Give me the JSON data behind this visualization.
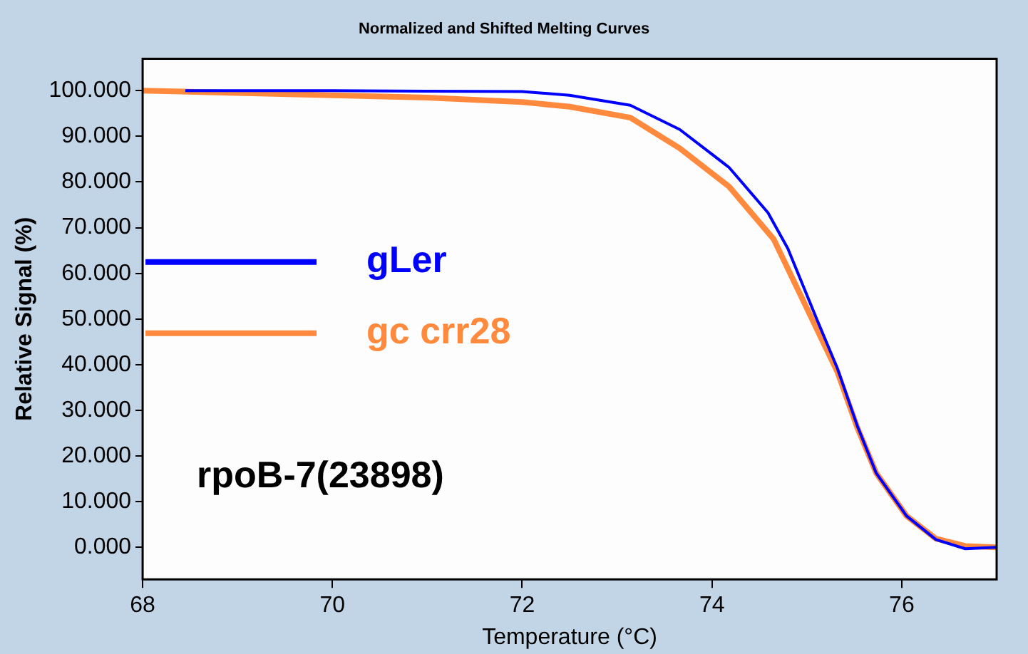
{
  "chart_data": {
    "type": "line",
    "title": "Normalized and Shifted Melting Curves",
    "xlabel": "Temperature (°C)",
    "ylabel": "Relative Signal (%)",
    "xlim": [
      68,
      77
    ],
    "xticks": [
      68,
      70,
      72,
      74,
      76
    ],
    "ylim": [
      -7,
      107
    ],
    "yticks": [
      {
        "value": 0,
        "label": "0.000"
      },
      {
        "value": 10,
        "label": "10.000"
      },
      {
        "value": 20,
        "label": "20.000"
      },
      {
        "value": 30,
        "label": "30.000"
      },
      {
        "value": 40,
        "label": "40.000"
      },
      {
        "value": 50,
        "label": "50.000"
      },
      {
        "value": 60,
        "label": "60.000"
      },
      {
        "value": 70,
        "label": "70.000"
      },
      {
        "value": 80,
        "label": "80.000"
      },
      {
        "value": 90,
        "label": "90.000"
      },
      {
        "value": 100,
        "label": "100.000"
      }
    ],
    "grid": false,
    "legend": "left",
    "marker": "none",
    "line_style": "solid",
    "annotations": [
      "rpoB-7(23898)"
    ],
    "series": [
      {
        "name": "gLer",
        "color": "#0000ff",
        "x": [
          68.45,
          70,
          71,
          72,
          72.5,
          73.14,
          73.66,
          74.18,
          74.59,
          74.8,
          75.11,
          75.32,
          75.53,
          75.73,
          76.05,
          76.36,
          76.67,
          77
        ],
        "values": [
          100,
          100,
          99.9,
          99.8,
          99,
          96.8,
          91.5,
          83.2,
          73.3,
          65.4,
          49.7,
          39.3,
          26.7,
          16.3,
          6.9,
          1.7,
          -0.3,
          0
        ]
      },
      {
        "name": "gc crr28",
        "color": "#ff8a3d",
        "x": [
          68,
          69,
          70,
          71,
          72,
          72.5,
          73.14,
          73.66,
          74.18,
          74.65,
          75.11,
          75.32,
          75.53,
          75.73,
          76.05,
          76.36,
          76.67,
          77
        ],
        "values": [
          100,
          99.5,
          99,
          98.5,
          97.5,
          96.5,
          94.1,
          87.4,
          79,
          67.5,
          47.6,
          38.5,
          26.3,
          16.3,
          6.9,
          1.9,
          0.3,
          0
        ]
      }
    ]
  }
}
